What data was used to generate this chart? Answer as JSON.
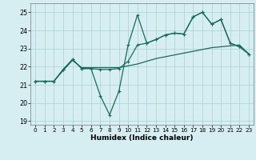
{
  "xlabel": "Humidex (Indice chaleur)",
  "xlim": [
    -0.5,
    23.5
  ],
  "ylim": [
    18.8,
    25.5
  ],
  "yticks": [
    19,
    20,
    21,
    22,
    23,
    24,
    25
  ],
  "xticks": [
    0,
    1,
    2,
    3,
    4,
    5,
    6,
    7,
    8,
    9,
    10,
    11,
    12,
    13,
    14,
    15,
    16,
    17,
    18,
    19,
    20,
    21,
    22,
    23
  ],
  "bg_color": "#d6eef2",
  "grid_color": "#b0d4d8",
  "line_color": "#1a6b5a",
  "line1_y": [
    21.2,
    21.2,
    21.2,
    21.85,
    22.4,
    21.9,
    21.9,
    20.4,
    19.35,
    20.65,
    23.2,
    24.85,
    23.3,
    23.5,
    23.75,
    23.85,
    23.8,
    24.75,
    25.0,
    24.35,
    24.6,
    23.3,
    23.1,
    22.7
  ],
  "line2_y": [
    21.2,
    21.2,
    21.2,
    21.8,
    22.35,
    21.95,
    21.95,
    21.95,
    21.95,
    21.95,
    22.05,
    22.15,
    22.3,
    22.45,
    22.55,
    22.65,
    22.75,
    22.85,
    22.95,
    23.05,
    23.1,
    23.15,
    23.2,
    22.7
  ],
  "line3_y": [
    21.2,
    21.2,
    21.2,
    21.85,
    22.4,
    21.9,
    21.9,
    21.85,
    21.85,
    21.9,
    22.3,
    23.2,
    23.3,
    23.5,
    23.75,
    23.85,
    23.8,
    24.75,
    25.0,
    24.35,
    24.6,
    23.3,
    23.1,
    22.7
  ],
  "marker_size": 2.5,
  "line_width": 0.9
}
